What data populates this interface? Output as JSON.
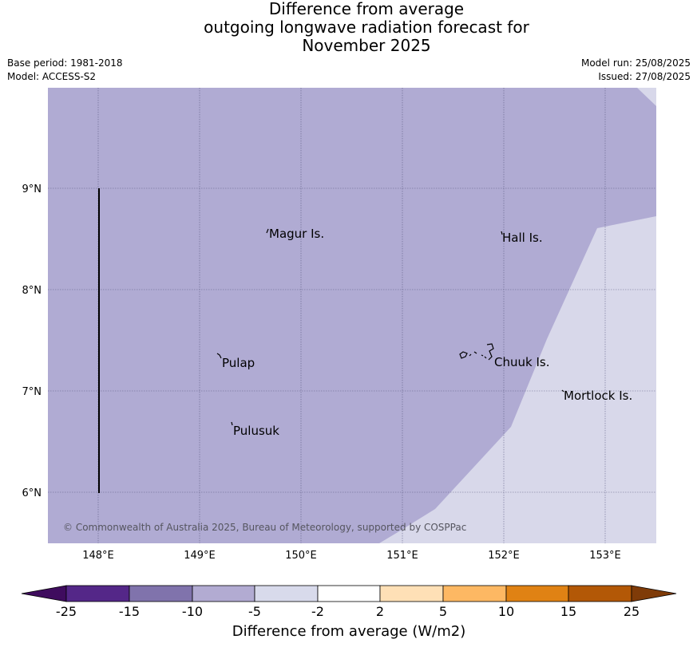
{
  "title": {
    "line1": "Difference from average",
    "line2": "outgoing longwave radiation forecast for",
    "line3": "November 2025"
  },
  "meta": {
    "base_period": "Base period: 1981-2018",
    "model": "Model: ACCESS-S2",
    "model_run": "Model run: 25/08/2025",
    "issued": "Issued: 27/08/2025"
  },
  "map": {
    "lat_labels": [
      "9°N",
      "8°N",
      "7°N",
      "6°N"
    ],
    "lon_labels": [
      "148°E",
      "149°E",
      "150°E",
      "151°E",
      "152°E",
      "153°E"
    ],
    "places": [
      "Magur Is.",
      "Hall Is.",
      "Pulap",
      "Chuuk Is.",
      "Mortlock Is.",
      "Pulusuk"
    ],
    "copyright": "© Commonwealth of Australia 2025, Bureau of Meteorology, supported by COSPPac",
    "fill_colors": {
      "band_-15_-10": "#b0abd3",
      "band_-5_-2": "#d8d8ea"
    }
  },
  "colorbar": {
    "ticks": [
      "-25",
      "-15",
      "-10",
      "-5",
      "-2",
      "2",
      "5",
      "10",
      "15",
      "25"
    ],
    "colors": [
      "#3f0c5e",
      "#542788",
      "#8073ac",
      "#b2abd2",
      "#d8daeb",
      "#ffffff",
      "#fee0b6",
      "#fdb863",
      "#e08214",
      "#b35806",
      "#7f3b08"
    ],
    "label": "Difference from average (W/m2)"
  }
}
